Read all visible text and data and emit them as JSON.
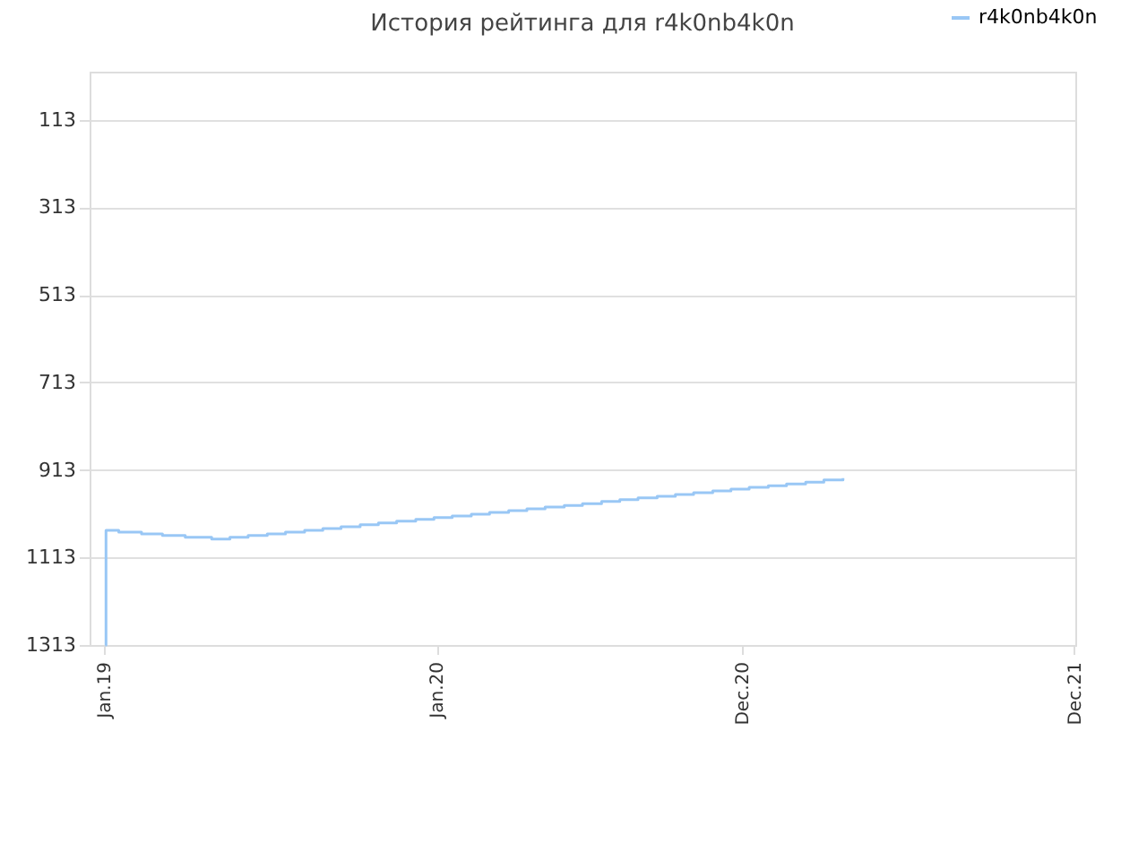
{
  "chart_data": {
    "type": "step",
    "title": "История рейтинга для r4k0nb4k0n",
    "x": [
      "2019-01-02",
      "2019-01-03",
      "2019-01-17",
      "2019-02-11",
      "2019-03-06",
      "2019-03-31",
      "2019-04-29",
      "2019-05-19",
      "2019-06-08",
      "2019-06-29",
      "2019-07-19",
      "2019-08-09",
      "2019-08-29",
      "2019-09-18",
      "2019-10-09",
      "2019-10-29",
      "2019-11-18",
      "2019-12-09",
      "2019-12-29",
      "2020-01-18",
      "2020-02-08",
      "2020-02-28",
      "2020-03-20",
      "2020-04-09",
      "2020-04-29",
      "2020-05-20",
      "2020-06-09",
      "2020-06-30",
      "2020-07-20",
      "2020-08-09",
      "2020-08-30",
      "2020-09-19",
      "2020-10-09",
      "2020-10-30",
      "2020-11-19",
      "2020-12-09",
      "2020-12-30",
      "2021-01-19",
      "2021-02-09",
      "2021-03-01",
      "2021-03-22"
    ],
    "series": [
      {
        "name": "r4k0nb4k0n",
        "color": "#99c7f5",
        "values": [
          1313,
          1051,
          1055,
          1059,
          1063,
          1067,
          1071,
          1067,
          1063,
          1059,
          1055,
          1051,
          1047,
          1043,
          1038,
          1034,
          1030,
          1026,
          1022,
          1018,
          1014,
          1010,
          1006,
          1002,
          998,
          994,
          990,
          985,
          981,
          977,
          973,
          969,
          965,
          961,
          957,
          953,
          949,
          945,
          941,
          936,
          932
        ]
      }
    ],
    "xlim": [
      "2018-12-16",
      "2021-12-02"
    ],
    "xticks": [
      {
        "value": "2019-01-01",
        "label": "Jan.19"
      },
      {
        "value": "2020-01-01",
        "label": "Jan.20"
      },
      {
        "value": "2020-12-01",
        "label": "Dec.20"
      },
      {
        "value": "2021-12-01",
        "label": "Dec.21"
      }
    ],
    "ylim": [
      1313,
      3
    ],
    "yticks": [
      113,
      313,
      513,
      713,
      913,
      1113,
      1313
    ],
    "grid": "y",
    "legend": "top right",
    "marker": "none",
    "line_style": "solid"
  }
}
